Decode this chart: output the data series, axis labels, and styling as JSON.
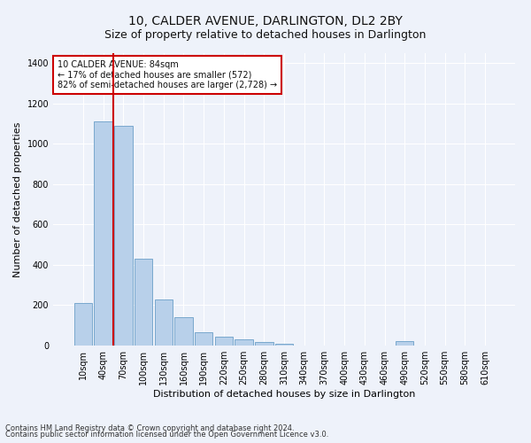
{
  "title": "10, CALDER AVENUE, DARLINGTON, DL2 2BY",
  "subtitle": "Size of property relative to detached houses in Darlington",
  "xlabel": "Distribution of detached houses by size in Darlington",
  "ylabel": "Number of detached properties",
  "categories": [
    "10sqm",
    "40sqm",
    "70sqm",
    "100sqm",
    "130sqm",
    "160sqm",
    "190sqm",
    "220sqm",
    "250sqm",
    "280sqm",
    "310sqm",
    "340sqm",
    "370sqm",
    "400sqm",
    "430sqm",
    "460sqm",
    "490sqm",
    "520sqm",
    "550sqm",
    "580sqm",
    "610sqm"
  ],
  "values": [
    210,
    1110,
    1090,
    430,
    230,
    140,
    65,
    45,
    30,
    18,
    10,
    0,
    0,
    0,
    0,
    0,
    22,
    0,
    0,
    0,
    0
  ],
  "bar_color": "#b8d0ea",
  "bar_edge_color": "#6a9fc8",
  "vline_color": "#cc0000",
  "vline_x_index": 2,
  "annotation_text": "10 CALDER AVENUE: 84sqm\n← 17% of detached houses are smaller (572)\n82% of semi-detached houses are larger (2,728) →",
  "annotation_box_facecolor": "#ffffff",
  "annotation_box_edgecolor": "#cc0000",
  "ylim": [
    0,
    1450
  ],
  "yticks": [
    0,
    200,
    400,
    600,
    800,
    1000,
    1200,
    1400
  ],
  "footnote1": "Contains HM Land Registry data © Crown copyright and database right 2024.",
  "footnote2": "Contains public sector information licensed under the Open Government Licence v3.0.",
  "background_color": "#eef2fa",
  "grid_color": "#ffffff",
  "title_fontsize": 10,
  "subtitle_fontsize": 9,
  "ylabel_fontsize": 8,
  "xlabel_fontsize": 8,
  "tick_fontsize": 7,
  "annotation_fontsize": 7,
  "footnote_fontsize": 6
}
